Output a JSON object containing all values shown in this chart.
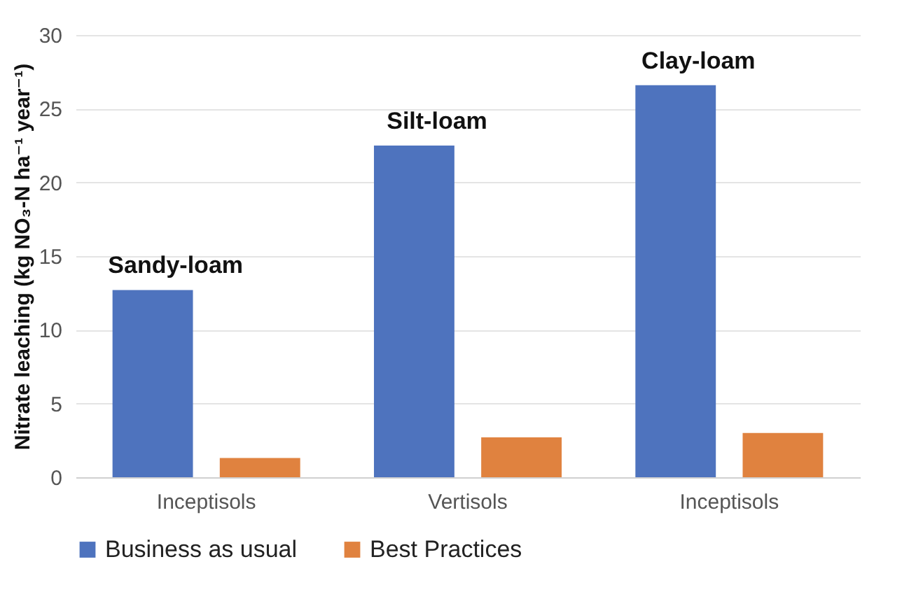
{
  "chart_data": {
    "type": "bar",
    "ylabel": "Nitrate leaching (kg NO₃-N ha⁻¹ year⁻¹)",
    "categories": [
      "Inceptisols",
      "Vertisols",
      "Inceptisols"
    ],
    "series": [
      {
        "name": "Business as usual",
        "color": "#4e73be",
        "values": [
          12.7,
          22.5,
          26.6
        ]
      },
      {
        "name": "Best Practices",
        "color": "#e0823f",
        "values": [
          1.3,
          2.7,
          3.0
        ]
      }
    ],
    "annotations": [
      "Sandy-loam",
      "Silt-loam",
      "Clay-loam"
    ],
    "ylim": [
      0,
      30
    ],
    "yticks": [
      0,
      5,
      10,
      15,
      20,
      25,
      30
    ],
    "grid": "y",
    "legend": "bottom"
  }
}
